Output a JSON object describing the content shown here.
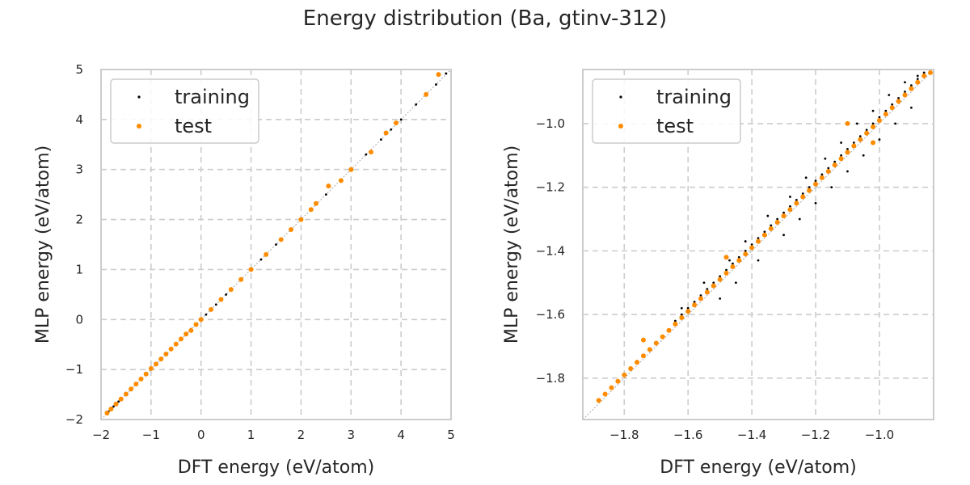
{
  "figure": {
    "title": "Energy distribution (Ba, gtinv-312)"
  },
  "colors": {
    "training": "#000000",
    "test": "#ff8c00",
    "grid": "#cccccc",
    "frame": "#cccccc",
    "diagonal": "#999999"
  },
  "chart_data": [
    {
      "type": "scatter",
      "xlabel": "DFT energy (eV/atom)",
      "ylabel": "MLP energy (eV/atom)",
      "xlim": [
        -2,
        5
      ],
      "ylim": [
        -2,
        5
      ],
      "xticks": [
        -2,
        -1,
        0,
        1,
        2,
        3,
        4,
        5
      ],
      "yticks": [
        -2,
        -1,
        0,
        1,
        2,
        3,
        4,
        5
      ],
      "xtick_labels": [
        "−2",
        "−1",
        "0",
        "1",
        "2",
        "3",
        "4",
        "5"
      ],
      "ytick_labels": [
        "−2",
        "−1",
        "0",
        "1",
        "2",
        "3",
        "4",
        "5"
      ],
      "grid": true,
      "legend_position": "upper-left",
      "series": [
        {
          "name": "training",
          "x": [
            -1.88,
            -1.85,
            -1.8,
            -1.75,
            -1.7,
            -1.65,
            -1.6,
            -1.5,
            -1.4,
            -1.3,
            -1.2,
            -1.1,
            -1.0,
            -0.9,
            -0.8,
            -0.7,
            -0.6,
            -0.5,
            -0.4,
            -0.3,
            -0.2,
            -0.1,
            0.0,
            0.1,
            0.3,
            0.5,
            0.8,
            1.0,
            1.2,
            1.5,
            1.8,
            2.0,
            2.2,
            2.5,
            2.8,
            3.0,
            3.3,
            3.6,
            3.8,
            4.0,
            4.3,
            4.5,
            4.7,
            4.9
          ],
          "y": [
            -1.87,
            -1.84,
            -1.79,
            -1.74,
            -1.69,
            -1.64,
            -1.58,
            -1.49,
            -1.38,
            -1.28,
            -1.19,
            -1.08,
            -0.98,
            -0.88,
            -0.79,
            -0.68,
            -0.58,
            -0.49,
            -0.38,
            -0.28,
            -0.19,
            -0.09,
            0.01,
            0.1,
            0.3,
            0.5,
            0.8,
            1.0,
            1.2,
            1.5,
            1.8,
            2.0,
            2.2,
            2.5,
            2.8,
            3.0,
            3.3,
            3.6,
            3.8,
            4.0,
            4.3,
            4.5,
            4.7,
            4.92
          ]
        },
        {
          "name": "test",
          "x": [
            -1.88,
            -1.8,
            -1.7,
            -1.6,
            -1.5,
            -1.4,
            -1.3,
            -1.2,
            -1.1,
            -1.0,
            -0.9,
            -0.8,
            -0.7,
            -0.6,
            -0.5,
            -0.4,
            -0.3,
            -0.2,
            -0.1,
            0.0,
            0.2,
            0.4,
            0.6,
            0.8,
            1.0,
            1.3,
            1.6,
            1.8,
            2.0,
            2.2,
            2.3,
            2.55,
            2.8,
            3.0,
            3.4,
            3.7,
            3.9,
            4.5,
            4.75
          ],
          "y": [
            -1.87,
            -1.79,
            -1.69,
            -1.59,
            -1.49,
            -1.39,
            -1.29,
            -1.19,
            -1.09,
            -0.98,
            -0.89,
            -0.79,
            -0.69,
            -0.59,
            -0.49,
            -0.39,
            -0.29,
            -0.22,
            -0.1,
            0.0,
            0.2,
            0.4,
            0.6,
            0.8,
            1.0,
            1.3,
            1.6,
            1.8,
            2.0,
            2.2,
            2.32,
            2.67,
            2.78,
            3.0,
            3.35,
            3.73,
            3.93,
            4.5,
            4.9
          ]
        }
      ]
    },
    {
      "type": "scatter",
      "xlabel": "DFT energy (eV/atom)",
      "ylabel": "MLP energy (eV/atom)",
      "xlim": [
        -1.93,
        -0.83
      ],
      "ylim": [
        -1.93,
        -0.83
      ],
      "xticks": [
        -1.8,
        -1.6,
        -1.4,
        -1.2,
        -1.0
      ],
      "yticks": [
        -1.8,
        -1.6,
        -1.4,
        -1.2,
        -1.0
      ],
      "xtick_labels": [
        "−1.8",
        "−1.6",
        "−1.4",
        "−1.2",
        "−1.0"
      ],
      "ytick_labels": [
        "−1.8",
        "−1.6",
        "−1.4",
        "−1.2",
        "−1.0"
      ],
      "grid": true,
      "legend_position": "upper-left",
      "series": [
        {
          "name": "training",
          "x": [
            -1.86,
            -1.82,
            -1.78,
            -1.74,
            -1.7,
            -1.66,
            -1.64,
            -1.62,
            -1.6,
            -1.58,
            -1.56,
            -1.54,
            -1.52,
            -1.5,
            -1.48,
            -1.46,
            -1.44,
            -1.42,
            -1.4,
            -1.38,
            -1.36,
            -1.34,
            -1.32,
            -1.3,
            -1.28,
            -1.26,
            -1.24,
            -1.22,
            -1.2,
            -1.18,
            -1.16,
            -1.14,
            -1.12,
            -1.1,
            -1.08,
            -1.06,
            -1.04,
            -1.02,
            -1.0,
            -0.98,
            -0.96,
            -0.94,
            -0.92,
            -0.9,
            -0.88,
            -0.86,
            -1.62,
            -1.55,
            -1.47,
            -1.42,
            -1.35,
            -1.28,
            -1.23,
            -1.17,
            -1.12,
            -1.07,
            -1.02,
            -0.97,
            -0.92,
            -0.88,
            -1.5,
            -1.45,
            -1.38,
            -1.3,
            -1.25,
            -1.2,
            -1.15,
            -1.1,
            -1.05,
            -1.0,
            -0.95,
            -0.9
          ],
          "y": [
            -1.85,
            -1.81,
            -1.77,
            -1.73,
            -1.69,
            -1.65,
            -1.62,
            -1.6,
            -1.58,
            -1.56,
            -1.54,
            -1.52,
            -1.5,
            -1.48,
            -1.46,
            -1.44,
            -1.42,
            -1.4,
            -1.38,
            -1.36,
            -1.34,
            -1.32,
            -1.3,
            -1.28,
            -1.26,
            -1.24,
            -1.22,
            -1.2,
            -1.18,
            -1.16,
            -1.14,
            -1.12,
            -1.1,
            -1.08,
            -1.06,
            -1.04,
            -1.02,
            -1.0,
            -0.98,
            -0.96,
            -0.94,
            -0.92,
            -0.9,
            -0.88,
            -0.86,
            -0.84,
            -1.58,
            -1.5,
            -1.43,
            -1.37,
            -1.29,
            -1.23,
            -1.17,
            -1.11,
            -1.06,
            -1.0,
            -0.96,
            -0.91,
            -0.87,
            -0.85,
            -1.55,
            -1.5,
            -1.43,
            -1.35,
            -1.3,
            -1.25,
            -1.2,
            -1.15,
            -1.1,
            -1.05,
            -1.0,
            -0.95
          ]
        },
        {
          "name": "test",
          "x": [
            -1.88,
            -1.86,
            -1.84,
            -1.82,
            -1.8,
            -1.78,
            -1.76,
            -1.74,
            -1.72,
            -1.7,
            -1.68,
            -1.66,
            -1.64,
            -1.62,
            -1.6,
            -1.58,
            -1.56,
            -1.54,
            -1.52,
            -1.5,
            -1.48,
            -1.46,
            -1.44,
            -1.42,
            -1.4,
            -1.38,
            -1.36,
            -1.34,
            -1.32,
            -1.3,
            -1.28,
            -1.26,
            -1.24,
            -1.22,
            -1.2,
            -1.18,
            -1.16,
            -1.14,
            -1.12,
            -1.1,
            -1.08,
            -1.06,
            -1.04,
            -1.02,
            -1.0,
            -0.98,
            -0.96,
            -0.94,
            -0.92,
            -0.9,
            -0.88,
            -0.86,
            -0.84,
            -1.74,
            -1.1,
            -1.02,
            -1.48
          ],
          "y": [
            -1.87,
            -1.85,
            -1.83,
            -1.81,
            -1.79,
            -1.77,
            -1.75,
            -1.73,
            -1.71,
            -1.69,
            -1.67,
            -1.65,
            -1.63,
            -1.61,
            -1.59,
            -1.57,
            -1.55,
            -1.53,
            -1.51,
            -1.49,
            -1.47,
            -1.45,
            -1.43,
            -1.41,
            -1.39,
            -1.37,
            -1.35,
            -1.33,
            -1.31,
            -1.29,
            -1.27,
            -1.25,
            -1.23,
            -1.21,
            -1.19,
            -1.17,
            -1.15,
            -1.13,
            -1.11,
            -1.09,
            -1.07,
            -1.05,
            -1.03,
            -1.01,
            -0.99,
            -0.97,
            -0.95,
            -0.93,
            -0.91,
            -0.89,
            -0.87,
            -0.85,
            -0.84,
            -1.68,
            -1.0,
            -1.06,
            -1.42
          ]
        }
      ]
    }
  ]
}
